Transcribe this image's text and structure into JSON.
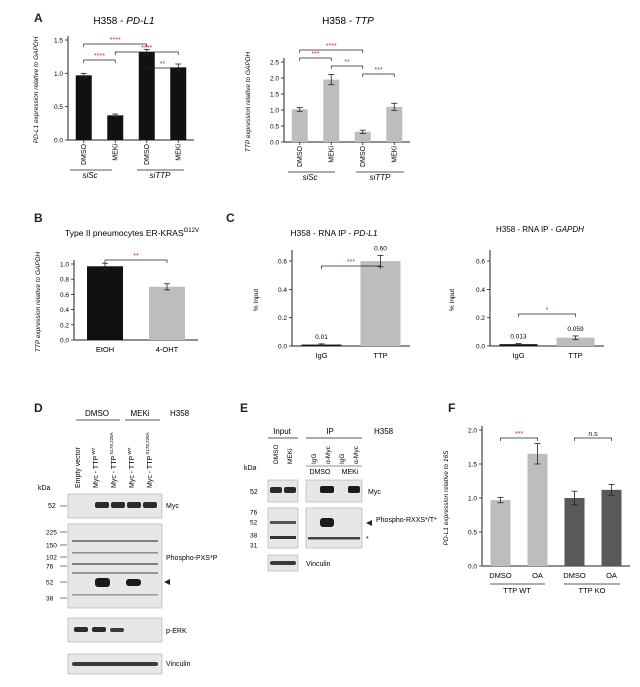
{
  "figure": {
    "panels": {
      "A": "A",
      "B": "B",
      "C": "C",
      "D": "D",
      "E": "E",
      "F": "F"
    },
    "colors": {
      "black_bar": "#111111",
      "grey_bar": "#bdbdbd",
      "dark_grey_bar": "#595959",
      "significance": "#d62728",
      "axis": "#222222",
      "blot_band": "#2a2a2a",
      "blot_bg": "#e7e7e7"
    },
    "panelA_left": {
      "title_prefix": "H358 - ",
      "title_gene": "PD-L1",
      "groups": [
        "siSc",
        "siTTP"
      ]
    },
    "panelA_right": {
      "title_prefix": "H358 - ",
      "title_gene": "TTP",
      "groups": [
        "siSc",
        "siTTP"
      ]
    },
    "panelB": {
      "title": "Type II pneumocytes ER-KRAS",
      "title_sup": "G12V"
    },
    "panelC_left": {
      "title_prefix": "H358 - RNA IP - ",
      "title_gene": "PD-L1",
      "value_labels": [
        "0.01",
        "0.60"
      ]
    },
    "panelC_right": {
      "title_prefix": "H358 - RNA IP - ",
      "title_gene": "GAPDH",
      "value_labels": [
        "0.013",
        "0.059"
      ]
    },
    "panelD": {
      "header_dmso": "DMSO",
      "header_meki": "MEKi",
      "cell_line": "H358",
      "lane_labels": [
        "Empty vector",
        "Myc - TTP WT",
        "Myc - TTP S178,228A",
        "Myc - TTP WT",
        "Myc - TTP S178,228A"
      ],
      "lane_main": [
        "Empty vector",
        "Myc - TTP",
        "Myc - TTP",
        "Myc - TTP",
        "Myc - TTP"
      ],
      "lane_sup": [
        "",
        "WT",
        "S178,228A",
        "WT",
        "S178,228A"
      ],
      "kda_label": "kDa",
      "kda_myc": [
        "52"
      ],
      "kda_phospho": [
        "225",
        "150",
        "102",
        "76",
        "52",
        "38"
      ],
      "blot_labels": [
        "Myc",
        "Phospho-PXS*P",
        "p-ERK",
        "Vinculin"
      ]
    },
    "panelE": {
      "header_input": "Input",
      "header_ip": "IP",
      "cell_line": "H358",
      "kda_label": "kDa",
      "lane_labels": [
        "DMSO",
        "MEKi",
        "IgG",
        "α-Myc",
        "IgG",
        "α-Myc"
      ],
      "sub_labels": [
        "DMSO",
        "MEKi"
      ],
      "kda_myc": [
        "52"
      ],
      "kda_phospho": [
        "76",
        "52",
        "38",
        "31"
      ],
      "blot_labels": [
        "Myc",
        "Phospho-RXXS*/T*",
        "Vinculin"
      ],
      "star": "*"
    },
    "panelF": {
      "groups": [
        "TTP WT",
        "TTP KO"
      ]
    }
  },
  "chart_data": [
    {
      "panel": "A-left",
      "type": "bar",
      "title": "H358 - PD-L1",
      "categories": [
        "DMSO",
        "MEKi",
        "DMSO",
        "MEKi"
      ],
      "groups": [
        "siSc",
        "siSc",
        "siTTP",
        "siTTP"
      ],
      "values": [
        0.97,
        0.37,
        1.32,
        1.09
      ],
      "errors": [
        0.03,
        0.02,
        0.04,
        0.05
      ],
      "colors": [
        "#111111",
        "#111111",
        "#111111",
        "#111111"
      ],
      "ylabel": "PD-L1 expression relative to GAPDH",
      "ylim": [
        0,
        1.5
      ],
      "yticks": [
        "0.0",
        "0.5",
        "1.0",
        "1.5"
      ],
      "significance": [
        {
          "from": 0,
          "to": 1,
          "label": "****"
        },
        {
          "from": 0,
          "to": 2,
          "label": "****"
        },
        {
          "from": 1,
          "to": 3,
          "label": "****"
        },
        {
          "from": 2,
          "to": 3,
          "label": "**"
        }
      ]
    },
    {
      "panel": "A-right",
      "type": "bar",
      "title": "H358 - TTP",
      "categories": [
        "DMSO",
        "MEKi",
        "DMSO",
        "MEKi"
      ],
      "groups": [
        "siSc",
        "siSc",
        "siTTP",
        "siTTP"
      ],
      "values": [
        1.02,
        1.95,
        0.32,
        1.1
      ],
      "errors": [
        0.06,
        0.16,
        0.05,
        0.11
      ],
      "colors": [
        "#bdbdbd",
        "#bdbdbd",
        "#bdbdbd",
        "#bdbdbd"
      ],
      "ylabel": "TTP expression relative to GAPDH",
      "ylim": [
        0,
        2.5
      ],
      "yticks": [
        "0.0",
        "0.5",
        "1.0",
        "1.5",
        "2.0",
        "2.5"
      ],
      "significance": [
        {
          "from": 0,
          "to": 1,
          "label": "***"
        },
        {
          "from": 0,
          "to": 2,
          "label": "****"
        },
        {
          "from": 1,
          "to": 2,
          "label": "**"
        },
        {
          "from": 2,
          "to": 3,
          "label": "***"
        }
      ]
    },
    {
      "panel": "B",
      "type": "bar",
      "title": "Type II pneumocytes ER-KRAS G12V",
      "categories": [
        "EtOH",
        "4-OHT"
      ],
      "values": [
        0.97,
        0.7
      ],
      "errors": [
        0.04,
        0.04
      ],
      "colors": [
        "#111111",
        "#bdbdbd"
      ],
      "ylabel": "TTP expression relative to GAPDH",
      "ylim": [
        0,
        1.0
      ],
      "yticks": [
        "0.0",
        "0.2",
        "0.4",
        "0.6",
        "0.8",
        "1.0"
      ],
      "significance": [
        {
          "from": 0,
          "to": 1,
          "label": "**"
        }
      ]
    },
    {
      "panel": "C-left",
      "type": "bar",
      "title": "H358 - RNA IP - PD-L1",
      "categories": [
        "IgG",
        "TTP"
      ],
      "values": [
        0.01,
        0.6
      ],
      "errors": [
        0.005,
        0.04
      ],
      "colors": [
        "#111111",
        "#bdbdbd"
      ],
      "ylabel": "% Input",
      "ylim": [
        0,
        0.65
      ],
      "yticks": [
        "0.0",
        "0.2",
        "0.4",
        "0.6"
      ],
      "significance": [
        {
          "from": 0,
          "to": 1,
          "label": "***"
        }
      ]
    },
    {
      "panel": "C-right",
      "type": "bar",
      "title": "H358 - RNA IP - GAPDH",
      "categories": [
        "IgG",
        "TTP"
      ],
      "values": [
        0.013,
        0.059
      ],
      "errors": [
        0.004,
        0.012
      ],
      "colors": [
        "#111111",
        "#bdbdbd"
      ],
      "ylabel": "% Input",
      "ylim": [
        0,
        0.65
      ],
      "yticks": [
        "0.0",
        "0.2",
        "0.4",
        "0.6"
      ],
      "significance": [
        {
          "from": 0,
          "to": 1,
          "label": "*"
        }
      ]
    },
    {
      "panel": "F",
      "type": "bar",
      "categories": [
        "DMSO",
        "OA",
        "DMSO",
        "OA"
      ],
      "groups": [
        "TTP WT",
        "TTP WT",
        "TTP KO",
        "TTP KO"
      ],
      "values": [
        0.97,
        1.65,
        1.0,
        1.12
      ],
      "errors": [
        0.04,
        0.15,
        0.1,
        0.08
      ],
      "colors": [
        "#bdbdbd",
        "#bdbdbd",
        "#595959",
        "#595959"
      ],
      "ylabel": "PD-L1 expression relative to 16S",
      "ylim": [
        0,
        2.0
      ],
      "yticks": [
        "0.0",
        "0.5",
        "1.0",
        "1.5",
        "2.0"
      ],
      "significance": [
        {
          "from": 0,
          "to": 1,
          "label": "***"
        },
        {
          "from": 2,
          "to": 3,
          "label": "n.s"
        }
      ]
    }
  ]
}
